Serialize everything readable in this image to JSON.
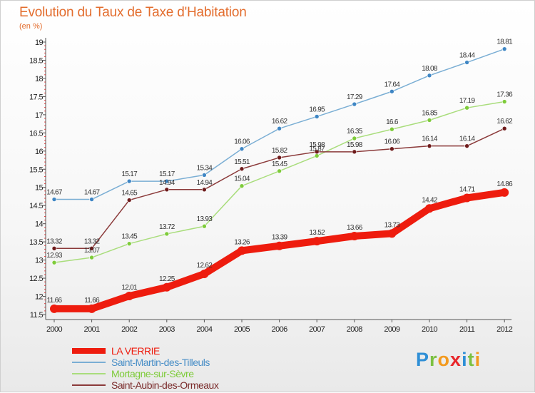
{
  "chart_data": {
    "type": "line",
    "title": "Evolution du Taux de Taxe d'Habitation",
    "subtitle": "(en %)",
    "categories": [
      "2000",
      "2001",
      "2002",
      "2003",
      "2004",
      "2005",
      "2006",
      "2007",
      "2008",
      "2009",
      "2010",
      "2011",
      "2012"
    ],
    "yticks": [
      "11.5",
      "12",
      "12.5",
      "13",
      "13.5",
      "14",
      "14.5",
      "15",
      "15.5",
      "16",
      "16.5",
      "17",
      "17.5",
      "18",
      "18.5",
      "19"
    ],
    "ylim": [
      11.5,
      19
    ],
    "series": [
      {
        "name": "LA VERRIE",
        "color": "#ee1c0e",
        "dot": "#ee1c0e",
        "labels": [
          "11.66",
          "11.66",
          "12.01",
          "12.25",
          "12.62",
          "13.26",
          "13.39",
          "13.52",
          "13.66",
          "13.73",
          "14.42",
          "14.71",
          "14.86"
        ],
        "values": [
          11.66,
          11.66,
          12.01,
          12.25,
          12.62,
          13.26,
          13.39,
          13.52,
          13.66,
          13.73,
          14.42,
          14.71,
          14.86
        ]
      },
      {
        "name": "Saint-Martin-des-Tilleuls",
        "color": "#7aaed4",
        "dot": "#3f86c4",
        "labels": [
          "14.67",
          "14.67",
          "15.17",
          "15.17",
          "15.34",
          "16.06",
          "16.62",
          "16.95",
          "17.29",
          "17.64",
          "18.08",
          "18.44",
          "18.81"
        ],
        "values": [
          14.67,
          14.67,
          15.17,
          15.17,
          15.34,
          16.06,
          16.62,
          16.95,
          17.29,
          17.64,
          18.08,
          18.44,
          18.81
        ]
      },
      {
        "name": "Mortagne-sur-Sèvre",
        "color": "#a9dd7c",
        "dot": "#7ecb3a",
        "labels": [
          "12.93",
          "13.07",
          "13.45",
          "13.72",
          "13.93",
          "15.04",
          "15.45",
          "15.87",
          "16.35",
          "16.6",
          "16.85",
          "17.19",
          "17.36"
        ],
        "values": [
          12.93,
          13.07,
          13.45,
          13.72,
          13.93,
          15.04,
          15.45,
          15.87,
          16.35,
          16.6,
          16.85,
          17.19,
          17.36
        ]
      },
      {
        "name": "Saint-Aubin-des-Ormeaux",
        "color": "#8b3a3a",
        "dot": "#6e1b1b",
        "labels": [
          "13.32",
          "13.32",
          "14.65",
          "14.94",
          "14.94",
          "15.51",
          "15.82",
          "15.98",
          "15.98",
          "16.06",
          "16.14",
          "16.14",
          "16.62"
        ],
        "values": [
          13.32,
          13.32,
          14.65,
          14.94,
          14.94,
          15.51,
          15.82,
          15.98,
          15.98,
          16.06,
          16.14,
          16.14,
          16.62
        ]
      }
    ]
  },
  "legend": {
    "items": [
      {
        "label": "LA VERRIE",
        "color": "#ee1c0e"
      },
      {
        "label": "Saint-Martin-des-Tilleuls",
        "color": "#7aaed4"
      },
      {
        "label": "Mortagne-sur-Sèvre",
        "color": "#a9dd7c"
      },
      {
        "label": "Saint-Aubin-des-Ormeaux",
        "color": "#8b3a3a"
      }
    ]
  },
  "logo": {
    "letters": [
      {
        "ch": "P",
        "color": "#2f8fd6"
      },
      {
        "ch": "r",
        "color": "#7cc142"
      },
      {
        "ch": "o",
        "color": "#f39a1e"
      },
      {
        "ch": "x",
        "color": "#e8262a"
      },
      {
        "ch": "i",
        "color": "#2f8fd6"
      },
      {
        "ch": "t",
        "color": "#7cc142"
      },
      {
        "ch": "i",
        "color": "#f39a1e"
      }
    ]
  }
}
